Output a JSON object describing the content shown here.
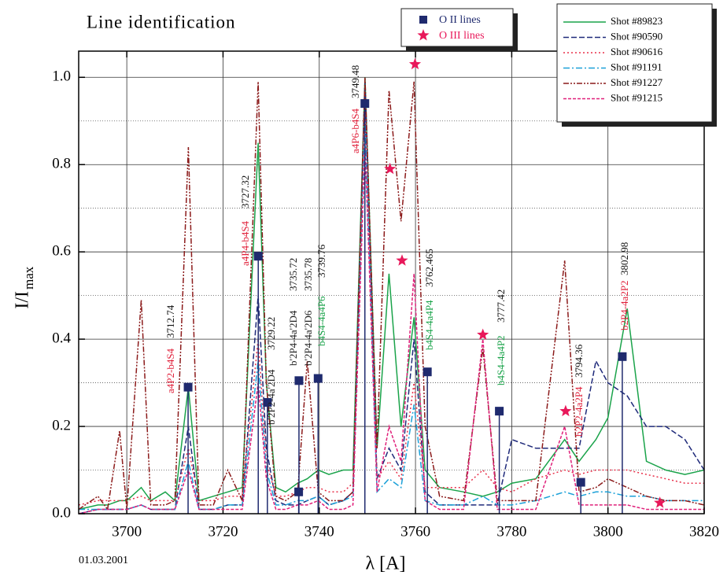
{
  "chart_data": {
    "type": "line",
    "title": "Line identification",
    "y_label": "I/I",
    "y_label_sub": "max",
    "x_label": "λ [A]",
    "date": "01.03.2001",
    "xlim": [
      3690,
      3820
    ],
    "ylim": [
      0,
      1.06
    ],
    "xticks": [
      3700,
      3720,
      3740,
      3760,
      3780,
      3800,
      3820
    ],
    "yticks": [
      {
        "value": 0,
        "label": "0.0"
      },
      {
        "value": 0.2,
        "label": "0.2"
      },
      {
        "value": 0.4,
        "label": "0.4"
      },
      {
        "value": 0.6,
        "label": "0.6"
      },
      {
        "value": 0.8,
        "label": "0.8"
      },
      {
        "value": 1,
        "label": "1.0"
      }
    ],
    "minor_yticks": [
      0.1,
      0.3,
      0.5,
      0.7,
      0.9
    ],
    "grid": true,
    "x": [
      3690,
      3694,
      3696,
      3698.5,
      3700,
      3703,
      3705,
      3708,
      3710,
      3712.8,
      3715,
      3718,
      3721,
      3724,
      3727.3,
      3729,
      3731,
      3733,
      3735.5,
      3737.5,
      3739.8,
      3742,
      3745,
      3747,
      3749.5,
      3752,
      3754.5,
      3757,
      3759.7,
      3762,
      3765,
      3770,
      3774,
      3777,
      3780,
      3785,
      3791,
      3794,
      3797.5,
      3800,
      3804,
      3808,
      3812,
      3816,
      3820
    ],
    "series": [
      {
        "name": "Shot #89823",
        "color": "#1aa34a",
        "dash": "solid",
        "values": [
          0.01,
          0.02,
          0.02,
          0.03,
          0.03,
          0.06,
          0.03,
          0.05,
          0.03,
          0.29,
          0.03,
          0.04,
          0.05,
          0.06,
          0.85,
          0.3,
          0.06,
          0.05,
          0.07,
          0.08,
          0.1,
          0.09,
          0.1,
          0.1,
          1.0,
          0.15,
          0.55,
          0.2,
          0.45,
          0.1,
          0.06,
          0.05,
          0.04,
          0.05,
          0.07,
          0.08,
          0.17,
          0.12,
          0.17,
          0.22,
          0.47,
          0.12,
          0.1,
          0.09,
          0.1
        ]
      },
      {
        "name": "Shot #90590",
        "color": "#1f2a7a",
        "dash": "dashed",
        "values": [
          0,
          0.01,
          0.01,
          0.01,
          0.01,
          0.02,
          0.01,
          0.01,
          0.01,
          0.2,
          0.01,
          0.01,
          0.02,
          0.02,
          0.5,
          0.15,
          0.03,
          0.02,
          0.02,
          0.03,
          0.04,
          0.02,
          0.03,
          0.05,
          0.99,
          0.08,
          0.15,
          0.1,
          0.4,
          0.05,
          0.02,
          0.02,
          0.02,
          0.02,
          0.17,
          0.15,
          0.15,
          0.15,
          0.35,
          0.3,
          0.27,
          0.2,
          0.2,
          0.17,
          0.1
        ]
      },
      {
        "name": "Shot #90616",
        "color": "#e8304a",
        "dash": "dotted",
        "values": [
          0.02,
          0.03,
          0.03,
          0.03,
          0.03,
          0.04,
          0.03,
          0.03,
          0.03,
          0.15,
          0.03,
          0.03,
          0.04,
          0.04,
          0.4,
          0.12,
          0.04,
          0.04,
          0.05,
          0.06,
          0.06,
          0.05,
          0.05,
          0.07,
          0.95,
          0.08,
          0.12,
          0.08,
          0.3,
          0.06,
          0.06,
          0.06,
          0.1,
          0.06,
          0.05,
          0.08,
          0.1,
          0.09,
          0.1,
          0.1,
          0.1,
          0.09,
          0.08,
          0.07,
          0.07
        ]
      },
      {
        "name": "Shot #91191",
        "color": "#1aa0d8",
        "dash": "dashdot",
        "values": [
          0.01,
          0.01,
          0.01,
          0.01,
          0.01,
          0.02,
          0.01,
          0.01,
          0.01,
          0.12,
          0.01,
          0.01,
          0.02,
          0.02,
          0.35,
          0.1,
          0.02,
          0.02,
          0.03,
          0.03,
          0.04,
          0.02,
          0.03,
          0.04,
          0.9,
          0.05,
          0.08,
          0.06,
          0.25,
          0.03,
          0.02,
          0.02,
          0.04,
          0.02,
          0.02,
          0.03,
          0.05,
          0.04,
          0.05,
          0.05,
          0.04,
          0.04,
          0.03,
          0.03,
          0.03
        ]
      },
      {
        "name": "Shot #91227",
        "color": "#8b1a1a",
        "dash": "dashdotdot",
        "values": [
          0.01,
          0.04,
          0.01,
          0.19,
          0.01,
          0.49,
          0.02,
          0.02,
          0.03,
          0.84,
          0.02,
          0.02,
          0.1,
          0.03,
          0.99,
          0.3,
          0.04,
          0.03,
          0.05,
          0.35,
          0.05,
          0.03,
          0.03,
          0.05,
          1.0,
          0.15,
          0.97,
          0.67,
          0.99,
          0.2,
          0.04,
          0.03,
          0.38,
          0.03,
          0.03,
          0.03,
          0.58,
          0.05,
          0.06,
          0.08,
          0.06,
          0.04,
          0.03,
          0.03,
          0.02
        ]
      },
      {
        "name": "Shot #91215",
        "color": "#e0207a",
        "dash": "shortdash",
        "values": [
          0,
          0.01,
          0.01,
          0.01,
          0.01,
          0.02,
          0.01,
          0.01,
          0.01,
          0.1,
          0.01,
          0.01,
          0.01,
          0.01,
          0.3,
          0.08,
          0.01,
          0.01,
          0.02,
          0.02,
          0.03,
          0.01,
          0.01,
          0.02,
          0.85,
          0.05,
          0.2,
          0.12,
          0.55,
          0.03,
          0.01,
          0.01,
          0.4,
          0.01,
          0.01,
          0.01,
          0.2,
          0.02,
          0.02,
          0.02,
          0.02,
          0.01,
          0.01,
          0.01,
          0.01
        ]
      }
    ],
    "oii": {
      "name": "O II lines",
      "color": "#1f2a6e",
      "x": [
        3712.74,
        3727.32,
        3729.22,
        3735.72,
        3735.78,
        3739.76,
        3749.48,
        3762.465,
        3777.42,
        3794.36,
        3802.98
      ],
      "values": [
        0.29,
        0.59,
        0.255,
        0.05,
        0.305,
        0.31,
        0.94,
        0.325,
        0.235,
        0.072,
        0.36
      ],
      "transitions": [
        "a4P2-b4S4",
        "a4P4-b4S4",
        "b'2P2-4a'2D4",
        "b'2P4-4a'2D4",
        "b'2P4-4a'2D6",
        "b4S4-4a4P6",
        "a4P6-b4S4",
        "b4S4-4a4P4",
        "b4S4-4a4P2",
        "b2P2-4a2P4",
        "b2P4-4a2P2"
      ],
      "transition_colors": [
        "#e0203a",
        "#e0203a",
        "#222222",
        "#222222",
        "#222222",
        "#1aa34a",
        "#e0203a",
        "#1aa34a",
        "#1aa34a",
        "#e0203a",
        "#e0203a"
      ]
    },
    "oiii": {
      "name": "O III lines",
      "color": "#e8185a",
      "x": [
        3754.7,
        3757.2,
        3759.9,
        3774,
        3791.2,
        3810.8
      ],
      "values": [
        0.79,
        0.58,
        1.03,
        0.41,
        0.235,
        0.025
      ]
    }
  }
}
